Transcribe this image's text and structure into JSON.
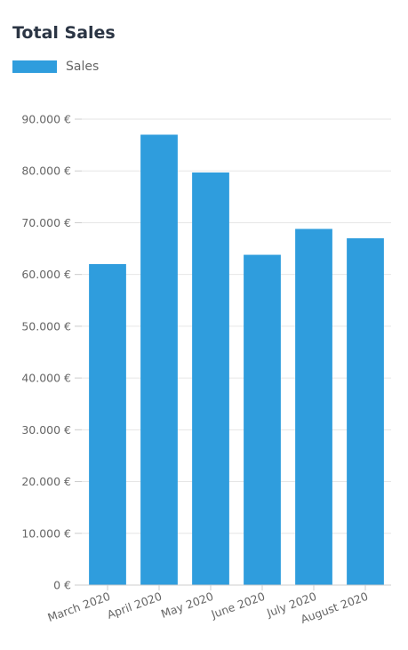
{
  "chart_data": {
    "type": "bar",
    "title": "Total Sales",
    "categories": [
      "March 2020",
      "April 2020",
      "May 2020",
      "June 2020",
      "July 2020",
      "August 2020"
    ],
    "series": [
      {
        "name": "Sales",
        "color": "#2f9ddd",
        "values": [
          62000,
          87000,
          79700,
          63800,
          68800,
          67000
        ]
      }
    ],
    "y_ticks": [
      "0 €",
      "10.000 €",
      "20.000 €",
      "30.000 €",
      "40.000 €",
      "50.000 €",
      "60.000 €",
      "70.000 €",
      "80.000 €",
      "90.000 €"
    ],
    "ylim": [
      0,
      90000
    ],
    "xlabel": "",
    "ylabel": "",
    "grid": true,
    "legend_position": "top-left"
  }
}
